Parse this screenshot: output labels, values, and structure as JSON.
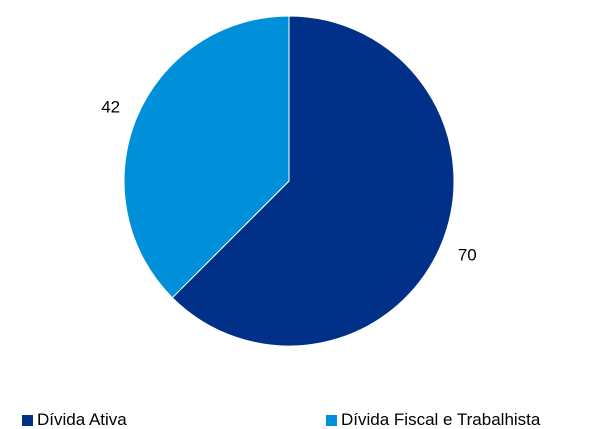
{
  "chart_data": {
    "type": "pie",
    "categories": [
      "Dívida Ativa",
      "Dívida Fiscal e Trabalhista"
    ],
    "values": [
      70,
      42
    ],
    "colors": [
      "#003087",
      "#0090DA"
    ],
    "data_labels": [
      "70",
      "42"
    ],
    "legend_position": "bottom",
    "start_angle_deg": 0,
    "direction": "clockwise"
  },
  "legend": {
    "items": [
      {
        "label": "Dívida Ativa",
        "color": "#003087"
      },
      {
        "label": "Dívida Fiscal e Trabalhista",
        "color": "#0090DA"
      }
    ]
  }
}
